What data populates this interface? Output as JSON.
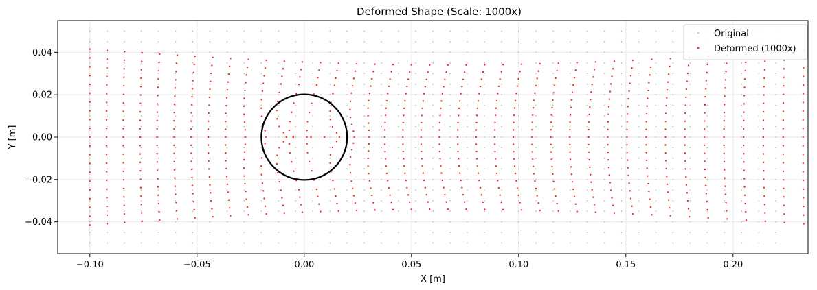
{
  "chart_data": {
    "type": "scatter",
    "title": "Deformed Shape (Scale: 1000x)",
    "xlabel": "X [m]",
    "ylabel": "Y [m]",
    "xlim": [
      -0.115,
      0.235
    ],
    "ylim": [
      -0.055,
      0.055
    ],
    "grid": true,
    "legend_position": "top-right",
    "x_ticks": [
      -0.1,
      -0.05,
      0.0,
      0.05,
      0.1,
      0.15,
      0.2
    ],
    "x_tick_labels": [
      "−0.10",
      "−0.05",
      "0.00",
      "0.05",
      "0.10",
      "0.15",
      "0.20"
    ],
    "y_ticks": [
      -0.04,
      -0.02,
      0.0,
      0.02,
      0.04
    ],
    "y_tick_labels": [
      "−0.04",
      "−0.02",
      "0.00",
      "0.02",
      "0.04"
    ],
    "mesh": {
      "x_min": -0.1,
      "x_max": 0.22,
      "nx": 41,
      "y_min": -0.05,
      "y_max": 0.05,
      "ny": 21
    },
    "hole": {
      "cx": 0.0,
      "cy": 0.0,
      "r": 0.02
    },
    "series": [
      {
        "name": "Original",
        "color": "#bdbdbd",
        "marker": "small-dot"
      },
      {
        "name": "Deformed (1000x)",
        "color": "#e8312a",
        "marker": "small-dot"
      }
    ],
    "circle_color": "#000000"
  }
}
